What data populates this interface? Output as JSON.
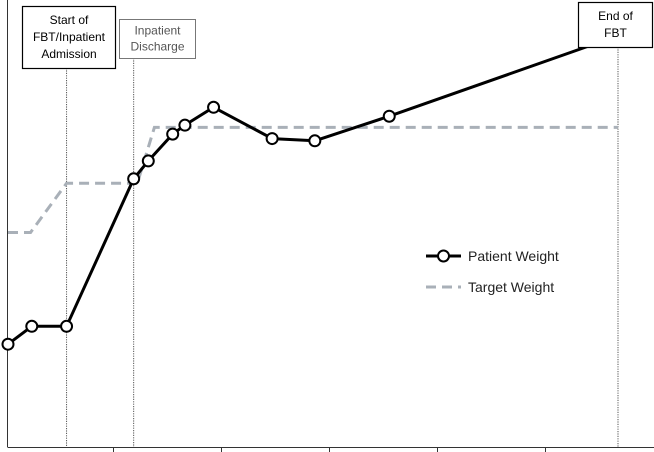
{
  "chart_data": {
    "type": "line",
    "title": "",
    "xlabel": "",
    "ylabel": "",
    "xlim": [
      0,
      100
    ],
    "ylim": [
      0,
      100
    ],
    "grid": false,
    "legend_position": "right",
    "series": [
      {
        "name": "Patient Weight",
        "style": "solid-with-markers",
        "color": "#000000",
        "points": [
          [
            0,
            23
          ],
          [
            3.9,
            27
          ],
          [
            9.6,
            27
          ],
          [
            20.6,
            60
          ],
          [
            23,
            64
          ],
          [
            27,
            70
          ],
          [
            29,
            72
          ],
          [
            33.7,
            76
          ],
          [
            43.3,
            69
          ],
          [
            50.3,
            68.5
          ],
          [
            62.5,
            74
          ],
          [
            100,
            92
          ]
        ]
      },
      {
        "name": "Target Weight",
        "style": "dashed",
        "color": "#a9b0b8",
        "points": [
          [
            0,
            48
          ],
          [
            3.7,
            48
          ],
          [
            9.6,
            59
          ],
          [
            21.2,
            59
          ],
          [
            24,
            71.5
          ],
          [
            100,
            71.5
          ]
        ]
      }
    ],
    "annotations": [
      {
        "x": 9.6,
        "boxed": true,
        "lines": [
          "Start of",
          "FBT/Inpatient",
          "Admission"
        ]
      },
      {
        "x": 20.6,
        "boxed": true,
        "lines": [
          "Inpatient",
          "Discharge"
        ]
      },
      {
        "x": 100,
        "boxed": true,
        "lines": [
          "End of",
          "FBT"
        ]
      }
    ]
  }
}
